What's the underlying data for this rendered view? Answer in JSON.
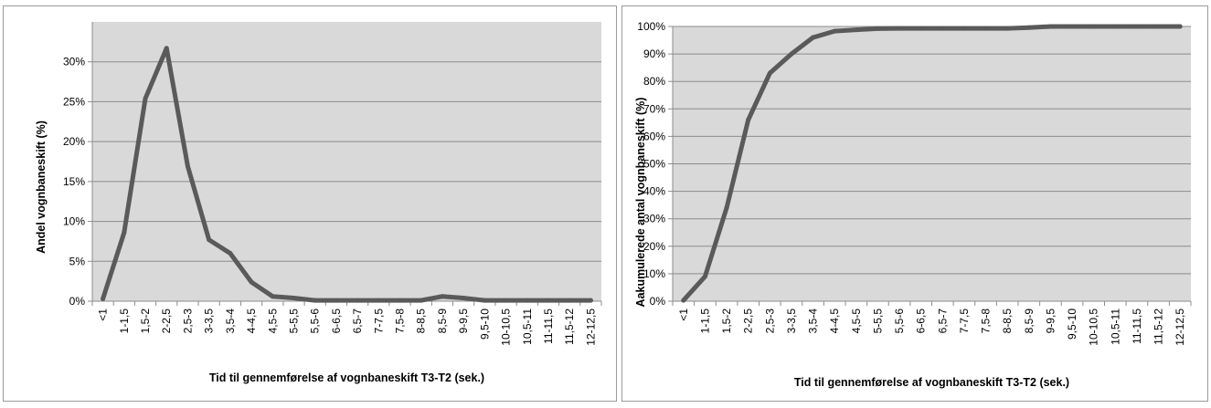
{
  "chart_data": [
    {
      "type": "line",
      "title": "",
      "xlabel": "Tid til gennemførelse af vognbaneskift T3-T2 (sek.)",
      "ylabel": "Andel vognbaneskift (%)",
      "categories": [
        "<1",
        "1-1,5",
        "1,5-2",
        "2-2,5",
        "2,5-3",
        "3-3,5",
        "3,5-4",
        "4-4,5",
        "4,5-5",
        "5-5,5",
        "5,5-6",
        "6-6,5",
        "6,5-7",
        "7-7,5",
        "7,5-8",
        "8-8,5",
        "8,5-9",
        "9-9,5",
        "9,5-10",
        "10-10,5",
        "10,5-11",
        "11-11,5",
        "11,5-12",
        "12-12,5"
      ],
      "series": [
        {
          "values": [
            0.3,
            8.6,
            25.4,
            31.7,
            16.9,
            7.7,
            6.0,
            2.4,
            0.6,
            0.4,
            0.1,
            0.1,
            0.1,
            0.1,
            0.1,
            0.1,
            0.6,
            0.4,
            0.1,
            0.1,
            0.1,
            0.1,
            0.1,
            0.1
          ]
        }
      ],
      "ylim": [
        0,
        35
      ],
      "yticks": [
        0,
        5,
        10,
        15,
        20,
        25,
        30
      ],
      "ytick_labels": [
        "0%",
        "5%",
        "10%",
        "15%",
        "20%",
        "25%",
        "30%"
      ],
      "grid": true,
      "legend": "none",
      "colors": {
        "line": "#5a5a5a",
        "plot_bg": "#d9d9d9",
        "grid": "#8c8c8c"
      }
    },
    {
      "type": "line",
      "title": "",
      "xlabel": "Tid til gennemførelse af vognbaneskift T3-T2 (sek.)",
      "ylabel": "Aakumulerede antal vognbaneskift (%)",
      "categories": [
        "<1",
        "1-1,5",
        "1,5-2",
        "2-2,5",
        "2,5-3",
        "3-3,5",
        "3,5-4",
        "4-4,5",
        "4,5-5",
        "5-5,5",
        "5,5-6",
        "6-6,5",
        "6,5-7",
        "7-7,5",
        "7,5-8",
        "8-8,5",
        "8,5-9",
        "9-9,5",
        "9,5-10",
        "10-10,5",
        "10,5-11",
        "11-11,5",
        "11,5-12",
        "12-12,5"
      ],
      "series": [
        {
          "values": [
            0.3,
            9,
            34,
            66,
            83,
            90,
            96,
            98.3,
            98.8,
            99.2,
            99.3,
            99.3,
            99.3,
            99.3,
            99.3,
            99.3,
            99.6,
            100,
            100,
            100,
            100,
            100,
            100,
            100
          ]
        }
      ],
      "ylim": [
        0,
        100
      ],
      "yticks": [
        0,
        10,
        20,
        30,
        40,
        50,
        60,
        70,
        80,
        90,
        100
      ],
      "ytick_labels": [
        "0%",
        "10%",
        "20%",
        "30%",
        "40%",
        "50%",
        "60%",
        "70%",
        "80%",
        "90%",
        "100%"
      ],
      "grid": true,
      "legend": "none",
      "colors": {
        "line": "#5a5a5a",
        "plot_bg": "#d9d9d9",
        "grid": "#8c8c8c"
      }
    }
  ]
}
